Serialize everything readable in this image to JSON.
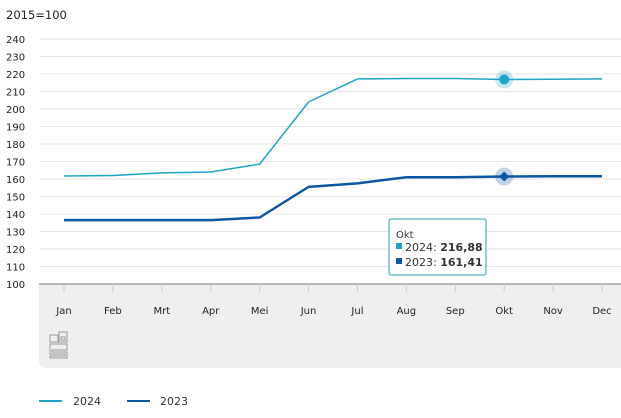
{
  "chart_data": {
    "type": "line",
    "title": "",
    "ylabel": "2015=100",
    "xlabel": "",
    "ylim": [
      100,
      240
    ],
    "yticks": [
      100,
      110,
      120,
      130,
      140,
      150,
      160,
      170,
      180,
      190,
      200,
      210,
      220,
      230,
      240
    ],
    "categories": [
      "Jan",
      "Feb",
      "Mrt",
      "Apr",
      "Mei",
      "Jun",
      "Jul",
      "Aug",
      "Sep",
      "Okt",
      "Nov",
      "Dec"
    ],
    "series": [
      {
        "name": "2024",
        "color": "#1fa3c6",
        "values": [
          161.7,
          162.0,
          163.5,
          164.0,
          168.5,
          204.0,
          217.2,
          217.4,
          217.4,
          216.88,
          217.0,
          217.2
        ]
      },
      {
        "name": "2023",
        "color": "#0b57a4",
        "values": [
          136.5,
          136.5,
          136.5,
          136.5,
          138.0,
          155.5,
          157.5,
          161.0,
          161.0,
          161.41,
          161.6,
          161.6
        ]
      }
    ],
    "grid": true,
    "legend_position": "bottom-left",
    "tooltip": {
      "category": "Okt",
      "items": [
        {
          "label": "2024:",
          "value": "216,88"
        },
        {
          "label": "2023:",
          "value": "161,41"
        }
      ]
    }
  },
  "logo": "cbs"
}
